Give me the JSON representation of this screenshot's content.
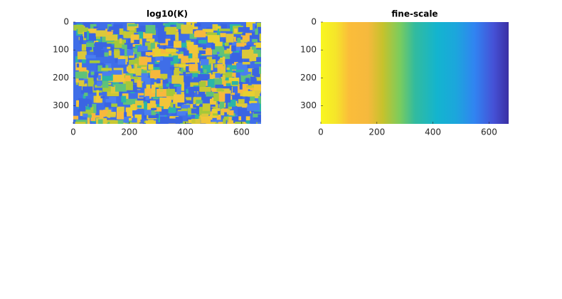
{
  "chart_data": [
    {
      "type": "image",
      "title": "log10(K)",
      "colormap": "parula-patchy",
      "xlim": [
        0,
        670
      ],
      "ylim": [
        0,
        365
      ],
      "y_reversed": true,
      "xticks": [
        0,
        200,
        400,
        600
      ],
      "yticks": [
        0,
        100,
        200,
        300
      ]
    },
    {
      "type": "image",
      "title": "fine-scale",
      "colormap": "parula-gradient-reversed",
      "xlim": [
        0,
        670
      ],
      "ylim": [
        0,
        365
      ],
      "y_reversed": true,
      "xticks": [
        0,
        200,
        400,
        600
      ],
      "yticks": [
        0,
        100,
        200,
        300
      ]
    }
  ]
}
